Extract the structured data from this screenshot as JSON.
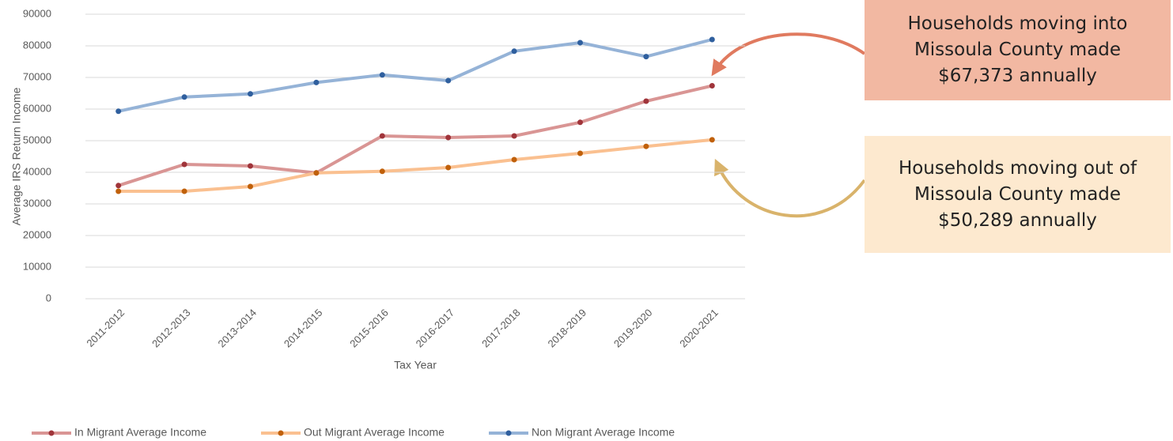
{
  "chart_data": {
    "type": "line",
    "categories": [
      "2011-2012",
      "2012-2013",
      "2013-2014",
      "2014-2015",
      "2015-2016",
      "2016-2017",
      "2017-2018",
      "2018-2019",
      "2019-2020",
      "2020-2021"
    ],
    "series": [
      {
        "name": "In Migrant Average Income",
        "color": "#d99594",
        "marker_color": "#a0343a",
        "values": [
          35800,
          42500,
          42000,
          39800,
          51500,
          51000,
          51500,
          55800,
          62500,
          67373
        ]
      },
      {
        "name": "Out Migrant Average Income",
        "color": "#fac090",
        "marker_color": "#c0600a",
        "values": [
          34000,
          34000,
          35500,
          39800,
          40300,
          41500,
          44000,
          46000,
          48200,
          50289
        ]
      },
      {
        "name": "Non Migrant Average Income",
        "color": "#95b3d7",
        "marker_color": "#2f5f9e",
        "values": [
          59300,
          63800,
          64800,
          68400,
          70800,
          69000,
          78300,
          81000,
          76600,
          82000
        ]
      }
    ],
    "ylim": [
      0,
      90000
    ],
    "yticks": [
      0,
      10000,
      20000,
      30000,
      40000,
      50000,
      60000,
      70000,
      80000,
      90000
    ],
    "grid": true,
    "y_label": "Average IRS Return Income",
    "x_label": "Tax Year",
    "legend": "bottom",
    "annotations": [
      {
        "text": "Households moving into Missoula County made $67,373 annually",
        "color": "#f2b8a2"
      },
      {
        "text": "Households moving out of Missoula County made $50,289 annually",
        "color": "#fde9cf"
      }
    ]
  }
}
